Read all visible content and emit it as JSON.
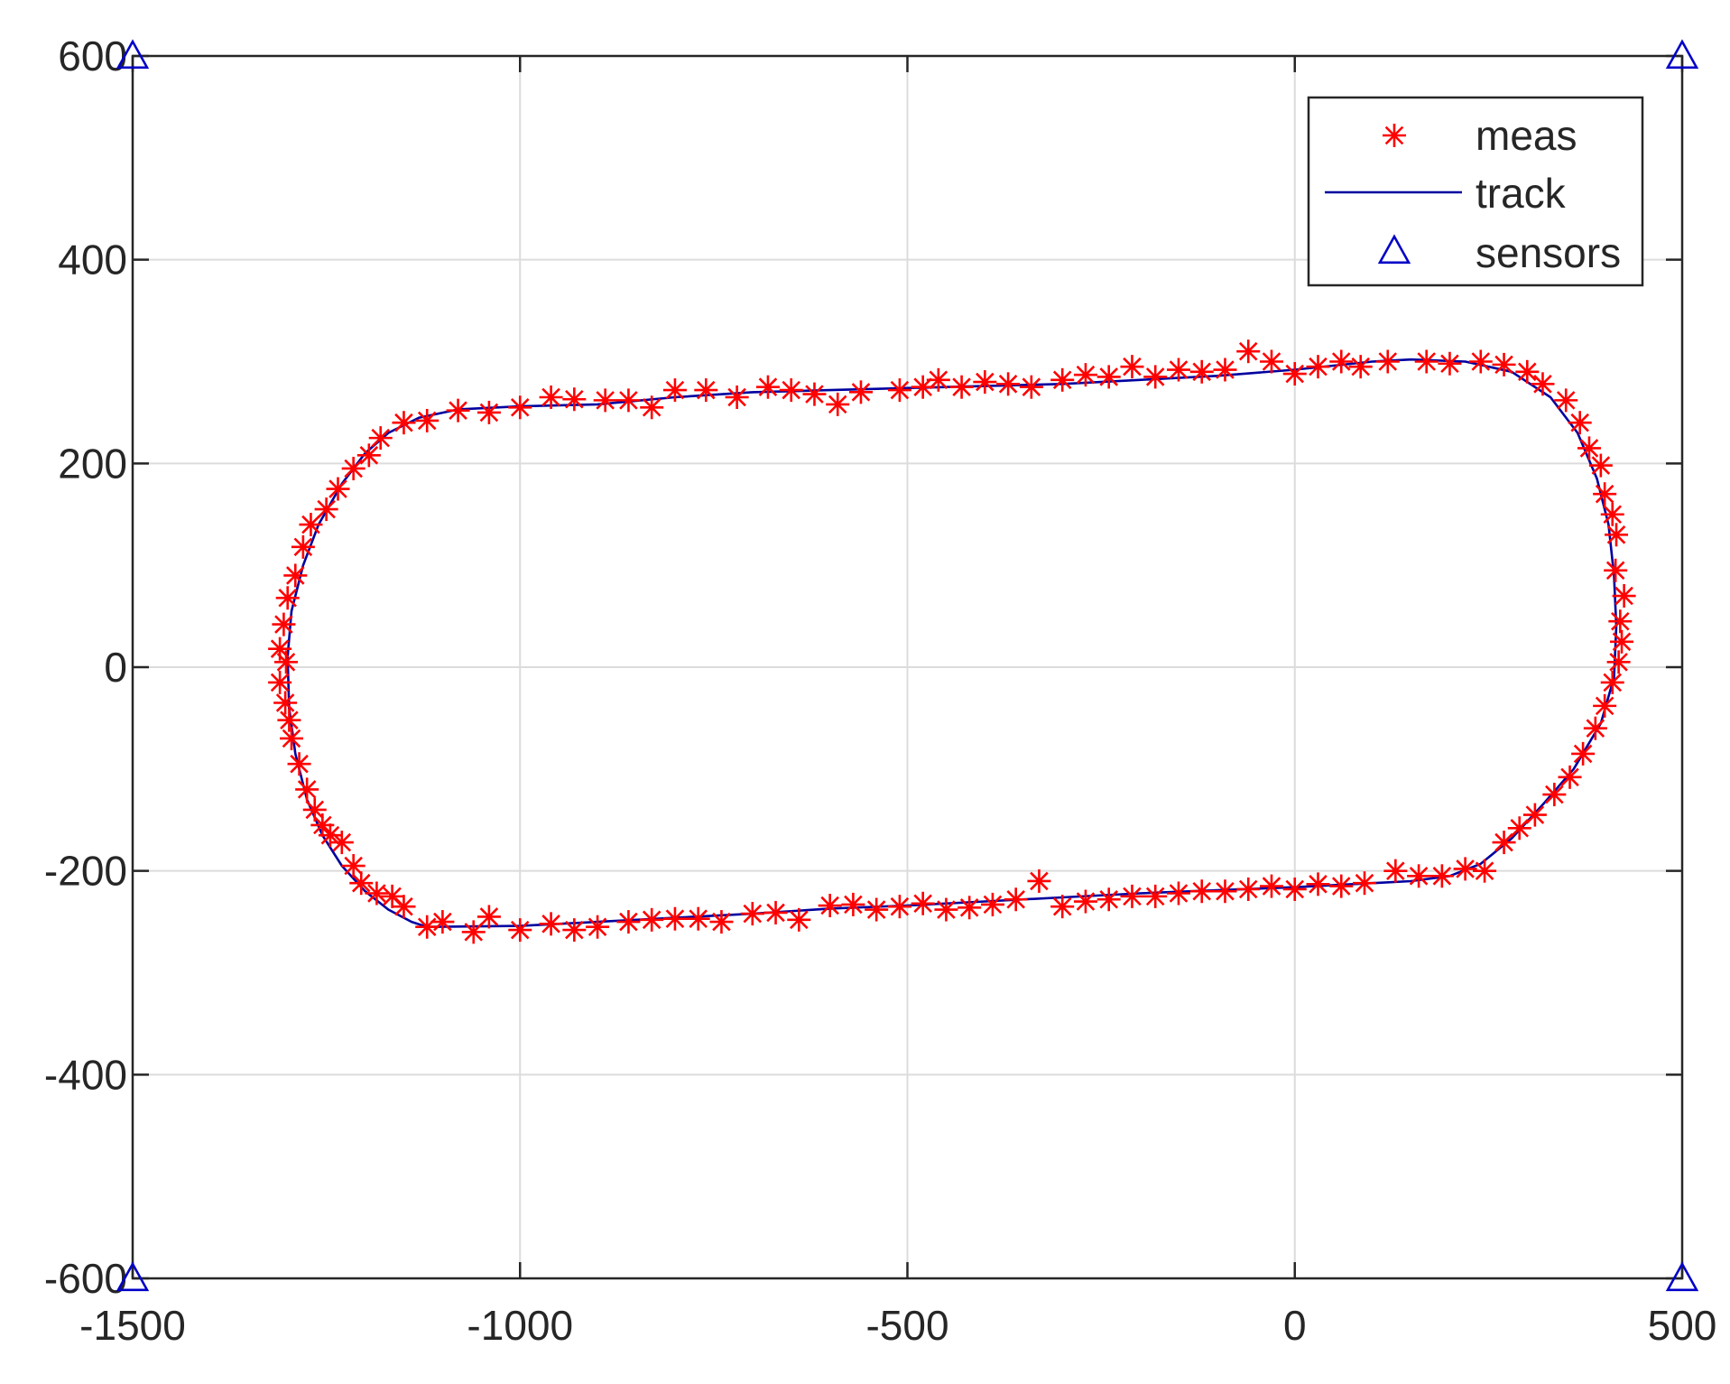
{
  "chart_data": {
    "type": "scatter",
    "xlim": [
      -1500,
      500
    ],
    "ylim": [
      -600,
      600
    ],
    "x_ticks": [
      -1500,
      -1000,
      -500,
      0,
      500
    ],
    "y_ticks": [
      600,
      400,
      200,
      0,
      -200,
      -400,
      -600
    ],
    "x_tick_labels": [
      "-1500",
      "-1000",
      "-500",
      "0",
      "500"
    ],
    "y_tick_labels": [
      "600",
      "400",
      "200",
      "0",
      "-200",
      "-400",
      "-600"
    ],
    "grid": true,
    "legend_position": "top-right",
    "series": [
      {
        "name": "meas",
        "marker": "asterisk",
        "color": "#ff0000",
        "points": [
          [
            -1120,
            -255
          ],
          [
            -1100,
            -250
          ],
          [
            -1060,
            -260
          ],
          [
            -1040,
            -245
          ],
          [
            -1000,
            -258
          ],
          [
            -960,
            -252
          ],
          [
            -930,
            -258
          ],
          [
            -900,
            -255
          ],
          [
            -860,
            -250
          ],
          [
            -830,
            -248
          ],
          [
            -800,
            -247
          ],
          [
            -770,
            -247
          ],
          [
            -740,
            -250
          ],
          [
            -700,
            -242
          ],
          [
            -670,
            -241
          ],
          [
            -640,
            -248
          ],
          [
            -600,
            -234
          ],
          [
            -570,
            -233
          ],
          [
            -540,
            -238
          ],
          [
            -510,
            -235
          ],
          [
            -480,
            -232
          ],
          [
            -450,
            -238
          ],
          [
            -420,
            -236
          ],
          [
            -390,
            -233
          ],
          [
            -360,
            -228
          ],
          [
            -330,
            -210
          ],
          [
            -300,
            -235
          ],
          [
            -270,
            -230
          ],
          [
            -240,
            -228
          ],
          [
            -210,
            -225
          ],
          [
            -180,
            -225
          ],
          [
            -150,
            -222
          ],
          [
            -120,
            -220
          ],
          [
            -90,
            -220
          ],
          [
            -60,
            -218
          ],
          [
            -30,
            -215
          ],
          [
            0,
            -218
          ],
          [
            30,
            -213
          ],
          [
            60,
            -215
          ],
          [
            90,
            -212
          ],
          [
            130,
            -200
          ],
          [
            160,
            -205
          ],
          [
            190,
            -205
          ],
          [
            220,
            -198
          ],
          [
            245,
            -200
          ],
          [
            270,
            -172
          ],
          [
            290,
            -158
          ],
          [
            310,
            -145
          ],
          [
            335,
            -125
          ],
          [
            355,
            -108
          ],
          [
            372,
            -85
          ],
          [
            388,
            -60
          ],
          [
            400,
            -38
          ],
          [
            410,
            -15
          ],
          [
            418,
            5
          ],
          [
            422,
            25
          ],
          [
            420,
            45
          ],
          [
            425,
            70
          ],
          [
            414,
            95
          ],
          [
            415,
            130
          ],
          [
            410,
            150
          ],
          [
            400,
            170
          ],
          [
            395,
            198
          ],
          [
            380,
            215
          ],
          [
            368,
            240
          ],
          [
            350,
            262
          ],
          [
            320,
            278
          ],
          [
            300,
            290
          ],
          [
            270,
            297
          ],
          [
            240,
            300
          ],
          [
            200,
            298
          ],
          [
            170,
            300
          ],
          [
            120,
            300
          ],
          [
            85,
            295
          ],
          [
            60,
            300
          ],
          [
            30,
            295
          ],
          [
            0,
            288
          ],
          [
            -30,
            300
          ],
          [
            -60,
            310
          ],
          [
            -90,
            292
          ],
          [
            -120,
            290
          ],
          [
            -150,
            292
          ],
          [
            -180,
            285
          ],
          [
            -210,
            295
          ],
          [
            -240,
            285
          ],
          [
            -270,
            287
          ],
          [
            -300,
            282
          ],
          [
            -340,
            275
          ],
          [
            -370,
            278
          ],
          [
            -400,
            280
          ],
          [
            -430,
            275
          ],
          [
            -460,
            282
          ],
          [
            -480,
            275
          ],
          [
            -510,
            272
          ],
          [
            -560,
            270
          ],
          [
            -590,
            258
          ],
          [
            -620,
            268
          ],
          [
            -650,
            272
          ],
          [
            -680,
            275
          ],
          [
            -720,
            265
          ],
          [
            -760,
            272
          ],
          [
            -800,
            272
          ],
          [
            -830,
            255
          ],
          [
            -860,
            262
          ],
          [
            -890,
            262
          ],
          [
            -930,
            263
          ],
          [
            -960,
            265
          ],
          [
            -1000,
            255
          ],
          [
            -1040,
            250
          ],
          [
            -1080,
            252
          ],
          [
            -1120,
            242
          ],
          [
            -1150,
            240
          ],
          [
            -1180,
            225
          ],
          [
            -1195,
            208
          ],
          [
            -1215,
            195
          ],
          [
            -1235,
            175
          ],
          [
            -1250,
            155
          ],
          [
            -1270,
            140
          ],
          [
            -1280,
            118
          ],
          [
            -1290,
            90
          ],
          [
            -1300,
            68
          ],
          [
            -1305,
            42
          ],
          [
            -1310,
            18
          ],
          [
            -1302,
            5
          ],
          [
            -1310,
            -15
          ],
          [
            -1303,
            -35
          ],
          [
            -1298,
            -52
          ],
          [
            -1295,
            -70
          ],
          [
            -1285,
            -95
          ],
          [
            -1275,
            -120
          ],
          [
            -1265,
            -140
          ],
          [
            -1255,
            -155
          ],
          [
            -1245,
            -165
          ],
          [
            -1230,
            -172
          ],
          [
            -1215,
            -195
          ],
          [
            -1205,
            -212
          ],
          [
            -1185,
            -222
          ],
          [
            -1165,
            -225
          ],
          [
            -1150,
            -235
          ]
        ]
      },
      {
        "name": "track",
        "line": true,
        "color": "#0000a0",
        "points": [
          [
            -1120,
            -255
          ],
          [
            -1000,
            -254
          ],
          [
            -900,
            -250
          ],
          [
            -800,
            -246
          ],
          [
            -700,
            -242
          ],
          [
            -600,
            -237
          ],
          [
            -500,
            -234
          ],
          [
            -400,
            -230
          ],
          [
            -300,
            -226
          ],
          [
            -200,
            -222
          ],
          [
            -100,
            -219
          ],
          [
            0,
            -216
          ],
          [
            100,
            -212
          ],
          [
            150,
            -210
          ],
          [
            200,
            -205
          ],
          [
            240,
            -193
          ],
          [
            280,
            -168
          ],
          [
            320,
            -135
          ],
          [
            360,
            -100
          ],
          [
            395,
            -55
          ],
          [
            412,
            -10
          ],
          [
            415,
            40
          ],
          [
            412,
            90
          ],
          [
            405,
            140
          ],
          [
            390,
            185
          ],
          [
            365,
            230
          ],
          [
            330,
            265
          ],
          [
            280,
            290
          ],
          [
            220,
            300
          ],
          [
            150,
            302
          ],
          [
            100,
            300
          ],
          [
            0,
            292
          ],
          [
            -100,
            286
          ],
          [
            -200,
            282
          ],
          [
            -300,
            278
          ],
          [
            -400,
            276
          ],
          [
            -500,
            274
          ],
          [
            -600,
            272
          ],
          [
            -700,
            270
          ],
          [
            -800,
            265
          ],
          [
            -900,
            258
          ],
          [
            -1000,
            256
          ],
          [
            -1080,
            253
          ],
          [
            -1130,
            245
          ],
          [
            -1170,
            230
          ],
          [
            -1200,
            210
          ],
          [
            -1230,
            180
          ],
          [
            -1260,
            140
          ],
          [
            -1280,
            100
          ],
          [
            -1295,
            55
          ],
          [
            -1300,
            10
          ],
          [
            -1298,
            -40
          ],
          [
            -1290,
            -85
          ],
          [
            -1275,
            -130
          ],
          [
            -1255,
            -165
          ],
          [
            -1230,
            -195
          ],
          [
            -1200,
            -220
          ],
          [
            -1170,
            -238
          ],
          [
            -1140,
            -250
          ],
          [
            -1120,
            -255
          ]
        ]
      },
      {
        "name": "sensors",
        "marker": "triangle",
        "color": "#0000c8",
        "points": [
          [
            -1500,
            600
          ],
          [
            500,
            600
          ],
          [
            -1500,
            -600
          ],
          [
            500,
            -600
          ]
        ]
      }
    ]
  },
  "legend": {
    "items": [
      {
        "label": "meas",
        "symbol": "asterisk",
        "color": "#ff0000"
      },
      {
        "label": "track",
        "symbol": "line",
        "color": "#0000a0"
      },
      {
        "label": "sensors",
        "symbol": "triangle",
        "color": "#0000c8"
      }
    ]
  }
}
